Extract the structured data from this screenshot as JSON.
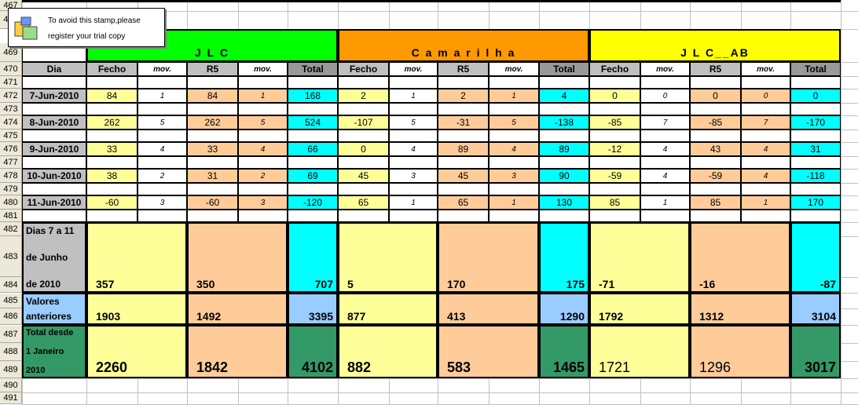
{
  "row_numbers": [
    "467",
    "468",
    "469",
    "470",
    "471",
    "472",
    "473",
    "474",
    "475",
    "476",
    "477",
    "478",
    "479",
    "480",
    "481",
    "482",
    "483",
    "484",
    "485",
    "486",
    "487",
    "488",
    "489",
    "490",
    "491"
  ],
  "stamp": {
    "line1": "To avoid this stamp,please",
    "line2": "register your trial copy"
  },
  "groups": [
    {
      "title": "J  L  C",
      "color": "#00ff00"
    },
    {
      "title": "C a m a r i l h a",
      "color": "#ff9900"
    },
    {
      "title": "J L C__AB",
      "color": "#ffff00"
    }
  ],
  "headers": {
    "dia": "Dia",
    "fecho": "Fecho",
    "mov": "mov.",
    "r5": "R5",
    "total": "Total"
  },
  "days": [
    {
      "label": "7-Jun-2010",
      "values": [
        [
          "84",
          "1",
          "84",
          "1",
          "168"
        ],
        [
          "2",
          "1",
          "2",
          "1",
          "4"
        ],
        [
          "0",
          "0",
          "0",
          "0",
          "0"
        ]
      ]
    },
    {
      "label": "8-Jun-2010",
      "values": [
        [
          "262",
          "5",
          "262",
          "5",
          "524"
        ],
        [
          "-107",
          "5",
          "-31",
          "5",
          "-138"
        ],
        [
          "-85",
          "7",
          "-85",
          "7",
          "-170"
        ]
      ]
    },
    {
      "label": "9-Jun-2010",
      "values": [
        [
          "33",
          "4",
          "33",
          "4",
          "66"
        ],
        [
          "0",
          "4",
          "89",
          "4",
          "89"
        ],
        [
          "-12",
          "4",
          "43",
          "4",
          "31"
        ]
      ]
    },
    {
      "label": "10-Jun-2010",
      "values": [
        [
          "38",
          "2",
          "31",
          "2",
          "69"
        ],
        [
          "45",
          "3",
          "45",
          "3",
          "90"
        ],
        [
          "-59",
          "4",
          "-59",
          "4",
          "-118"
        ]
      ]
    },
    {
      "label": "11-Jun-2010",
      "values": [
        [
          "-60",
          "3",
          "-60",
          "3",
          "-120"
        ],
        [
          "65",
          "1",
          "65",
          "1",
          "130"
        ],
        [
          "85",
          "1",
          "85",
          "1",
          "170"
        ]
      ]
    }
  ],
  "summary_label": [
    "Dias 7 a 11",
    "de Junho",
    "de 2010"
  ],
  "summary_values": [
    [
      "357",
      "350",
      "707"
    ],
    [
      "5",
      "170",
      "175"
    ],
    [
      "-71",
      "-16",
      "-87"
    ]
  ],
  "previous_label": [
    "Valores",
    "anteriores"
  ],
  "previous_values": [
    [
      "1903",
      "1492",
      "3395"
    ],
    [
      "877",
      "413",
      "1290"
    ],
    [
      "1792",
      "1312",
      "3104"
    ]
  ],
  "total_label": [
    "Total desde",
    "1 Janeiro",
    "2010"
  ],
  "total_values": [
    [
      "2260",
      "1842",
      "4102"
    ],
    [
      "882",
      "583",
      "1465"
    ],
    [
      "1721",
      "1296",
      "3017"
    ]
  ]
}
